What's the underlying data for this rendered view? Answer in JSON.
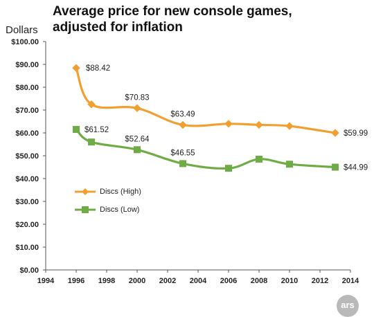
{
  "chart_data": {
    "type": "line",
    "title_lines": [
      "Average price for new console games,",
      "adjusted for inflation"
    ],
    "ylabel": "Dollars",
    "xlabel": "",
    "xlim": [
      1994,
      2014
    ],
    "ylim": [
      0,
      100
    ],
    "x_ticks": [
      1994,
      1996,
      1998,
      2000,
      2002,
      2004,
      2006,
      2008,
      2010,
      2012,
      2014
    ],
    "y_ticks": [
      0,
      10,
      20,
      30,
      40,
      50,
      60,
      70,
      80,
      90,
      100
    ],
    "y_tick_labels": [
      "$0.00",
      "$10.00",
      "$20.00",
      "$30.00",
      "$40.00",
      "$50.00",
      "$60.00",
      "$70.00",
      "$80.00",
      "$90.00",
      "$100.00"
    ],
    "grid": false,
    "legend_position": "bottom-left",
    "series": [
      {
        "name": "Discs (High)",
        "color": "#f0a030",
        "marker": "diamond",
        "points": [
          {
            "x": 1996,
            "y": 88.42,
            "label": "$88.42"
          },
          {
            "x": 1997,
            "y": 72.5
          },
          {
            "x": 2000,
            "y": 70.83,
            "label": "$70.83"
          },
          {
            "x": 2003,
            "y": 63.49,
            "label": "$63.49"
          },
          {
            "x": 2006,
            "y": 64.0
          },
          {
            "x": 2008,
            "y": 63.5
          },
          {
            "x": 2010,
            "y": 63.0
          },
          {
            "x": 2013,
            "y": 59.99,
            "label": "$59.99"
          }
        ]
      },
      {
        "name": "Discs (Low)",
        "color": "#6fac46",
        "marker": "square",
        "points": [
          {
            "x": 1996,
            "y": 61.52,
            "label": "$61.52"
          },
          {
            "x": 1997,
            "y": 56.0
          },
          {
            "x": 2000,
            "y": 52.64,
            "label": "$52.64"
          },
          {
            "x": 2003,
            "y": 46.55,
            "label": "$46.55"
          },
          {
            "x": 2006,
            "y": 44.5
          },
          {
            "x": 2008,
            "y": 48.5
          },
          {
            "x": 2010,
            "y": 46.3
          },
          {
            "x": 2013,
            "y": 44.99,
            "label": "$44.99"
          }
        ]
      }
    ]
  },
  "badge": {
    "text": "ars"
  }
}
